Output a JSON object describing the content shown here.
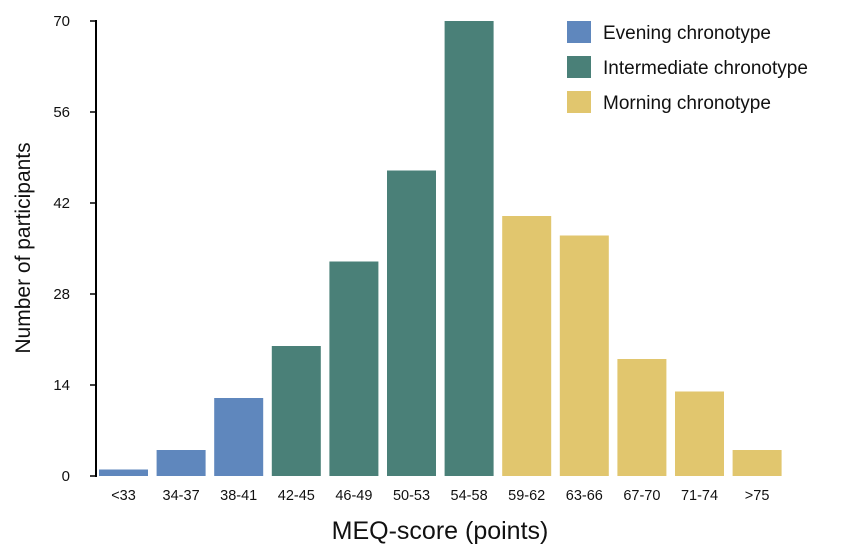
{
  "chart_data": {
    "type": "bar",
    "xlabel": "MEQ-score (points)",
    "ylabel": "Number of participants",
    "ylim": [
      0,
      70
    ],
    "yticks": [
      0,
      14,
      28,
      42,
      56,
      70
    ],
    "categories": [
      "<33",
      "34-37",
      "38-41",
      "42-45",
      "46-49",
      "50-53",
      "54-58",
      "59-62",
      "63-66",
      "67-70",
      "71-74",
      ">75"
    ],
    "values": [
      1,
      4,
      12,
      20,
      33,
      47,
      70,
      40,
      37,
      18,
      13,
      4
    ],
    "groups": [
      0,
      0,
      0,
      1,
      1,
      1,
      1,
      2,
      2,
      2,
      2,
      2
    ],
    "legend": {
      "position": "top-right",
      "entries": [
        {
          "label": "Evening chronotype",
          "color": "#5f87bd"
        },
        {
          "label": "Intermediate chronotype",
          "color": "#4a8078"
        },
        {
          "label": "Morning chronotype",
          "color": "#e1c66e"
        }
      ]
    },
    "grid": false
  }
}
